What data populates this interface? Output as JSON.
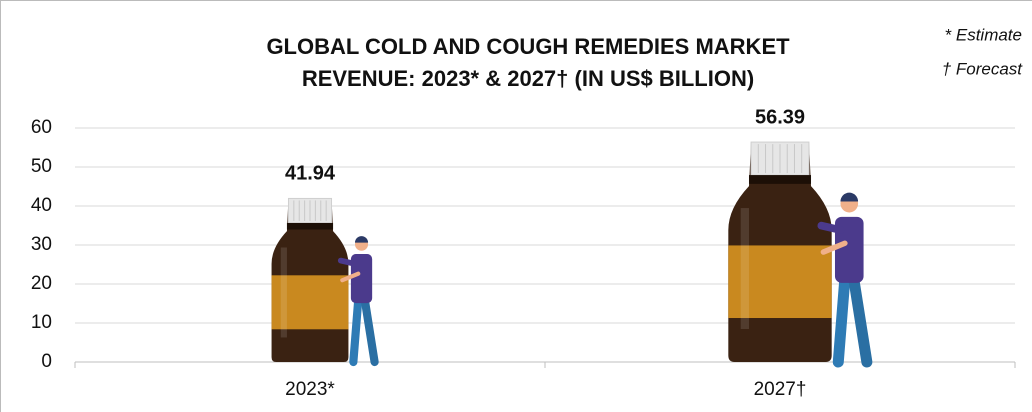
{
  "chart_data": {
    "type": "bar",
    "title": [
      "GLOBAL COLD AND COUGH REMEDIES MARKET",
      "REVENUE: 2023* & 2027† (IN US$ BILLION)"
    ],
    "annotations": [
      "* Estimate",
      "† Forecast"
    ],
    "categories": [
      "2023*",
      "2027†"
    ],
    "values": [
      41.94,
      56.39
    ],
    "color": "#3a2212",
    "ylim": [
      0,
      60
    ],
    "yticks": [
      0,
      10,
      20,
      30,
      40,
      50,
      60
    ],
    "grid": true
  }
}
